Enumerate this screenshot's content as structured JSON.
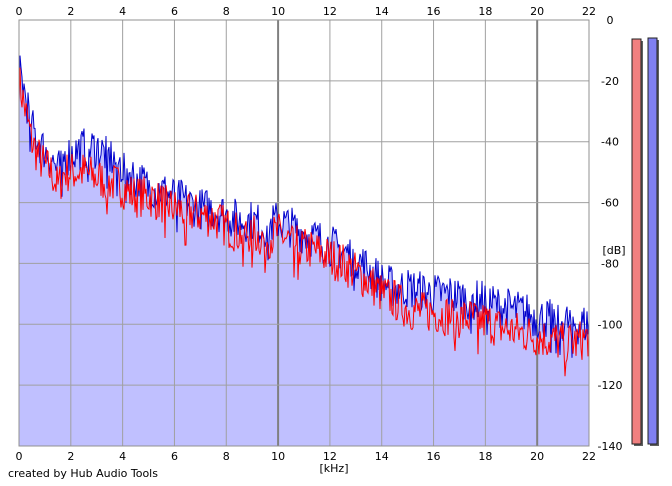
{
  "credit": "created by Hub Audio Tools",
  "chart_data": {
    "type": "area",
    "title": "",
    "xlabel": "[kHz]",
    "ylabel": "[dB]",
    "xlim": [
      0,
      22
    ],
    "ylim": [
      -140,
      0
    ],
    "x_ticks": [
      0,
      2,
      4,
      6,
      8,
      10,
      12,
      14,
      16,
      18,
      20,
      22
    ],
    "x_tick_labels": [
      "0",
      "2",
      "4",
      "6",
      "8",
      "10",
      "12",
      "14",
      "16",
      "18",
      "20",
      "22"
    ],
    "y_ticks": [
      0,
      -20,
      -40,
      -60,
      -80,
      -100,
      -120,
      -140
    ],
    "y_tick_labels": [
      "0",
      "-20",
      "-40",
      "-60",
      "-80",
      "-100",
      "-120",
      "-140"
    ],
    "grid": true,
    "colors": {
      "fill": "#c0c0ff",
      "left_channel": "#ff0000",
      "right_channel": "#0000cc",
      "grid": "#a0a0a0",
      "grid_major": "#808080",
      "meter_left": "#f08080",
      "meter_right": "#8080f0"
    },
    "series": [
      {
        "x": [
          0,
          0.25,
          0.5,
          0.75,
          1,
          1.25,
          1.5,
          1.75,
          2,
          2.5,
          3,
          3.5,
          4,
          4.5,
          5,
          5.5,
          6,
          6.5,
          7,
          7.5,
          8,
          8.5,
          9,
          9.5,
          10,
          10.5,
          11,
          11.5,
          12,
          12.5,
          13,
          13.5,
          14,
          14.5,
          15,
          15.5,
          16,
          16.5,
          17,
          17.5,
          18,
          18.5,
          19,
          19.5,
          20,
          20.5,
          21,
          21.5,
          22
        ],
        "values": [
          -20,
          -30,
          -40,
          -45,
          -48,
          -50,
          -55,
          -50,
          -50,
          -50,
          -52,
          -53,
          -55,
          -58,
          -58,
          -60,
          -62,
          -63,
          -64,
          -65,
          -68,
          -70,
          -70,
          -72,
          -70,
          -73,
          -75,
          -76,
          -78,
          -80,
          -83,
          -86,
          -90,
          -92,
          -95,
          -96,
          -96,
          -97,
          -98,
          -98,
          -99,
          -101,
          -102,
          -103,
          -104,
          -105,
          -106,
          -106,
          -104
        ]
      },
      {
        "x": [
          0,
          0.25,
          0.5,
          0.75,
          1,
          1.25,
          1.5,
          1.75,
          2,
          2.5,
          3,
          3.5,
          4,
          4.5,
          5,
          5.5,
          6,
          6.5,
          7,
          7.5,
          8,
          8.5,
          9,
          9.5,
          10,
          10.5,
          11,
          11.5,
          12,
          12.5,
          13,
          13.5,
          14,
          14.5,
          15,
          15.5,
          16,
          16.5,
          17,
          17.5,
          18,
          18.5,
          19,
          19.5,
          20,
          20.5,
          21,
          21.5,
          22
        ],
        "values": [
          -15,
          -25,
          -35,
          -40,
          -43,
          -45,
          -50,
          -45,
          -44,
          -42,
          -42,
          -45,
          -48,
          -52,
          -55,
          -56,
          -58,
          -60,
          -62,
          -62,
          -64,
          -66,
          -66,
          -68,
          -66,
          -68,
          -70,
          -72,
          -74,
          -76,
          -78,
          -82,
          -86,
          -88,
          -88,
          -89,
          -90,
          -90,
          -91,
          -92,
          -92,
          -94,
          -95,
          -96,
          -98,
          -98,
          -99,
          -100,
          -100
        ]
      }
    ]
  }
}
